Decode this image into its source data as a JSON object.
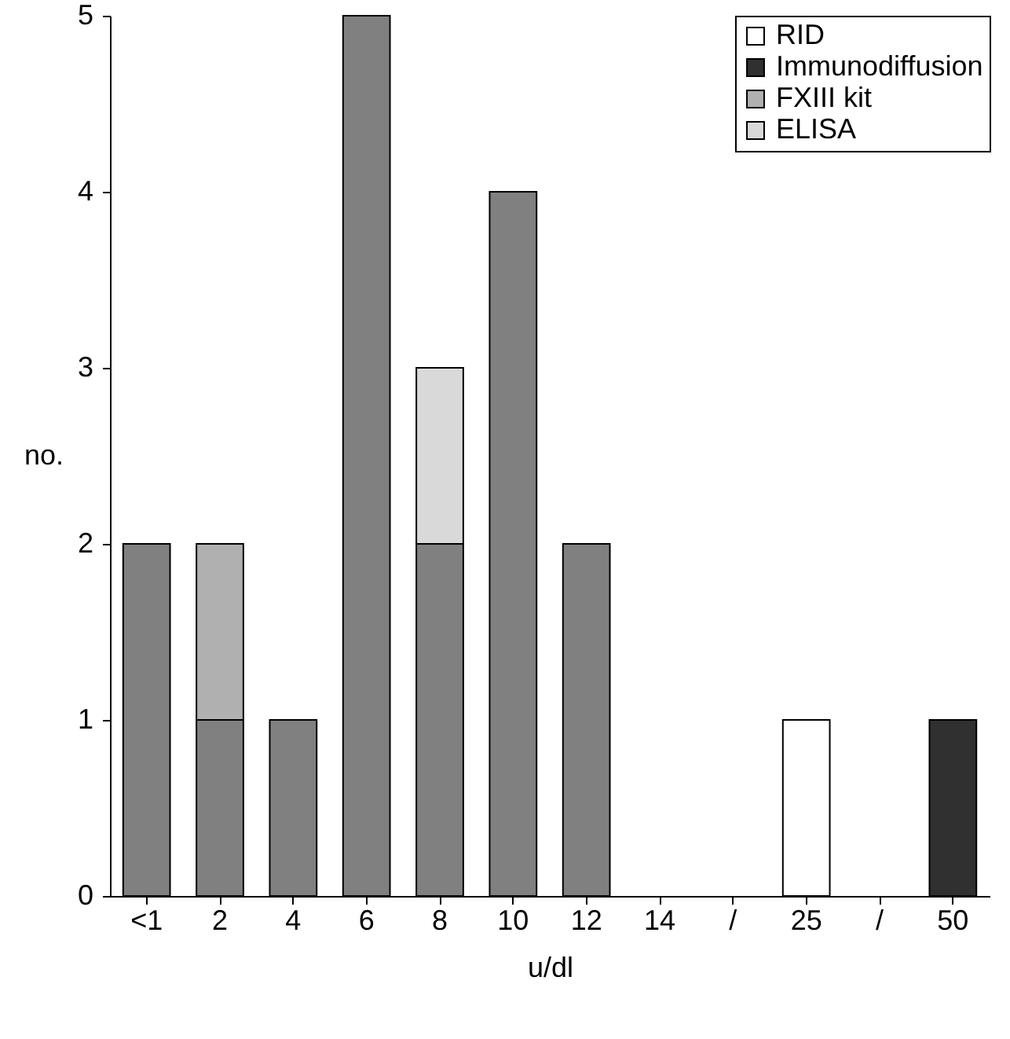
{
  "chart_data": {
    "type": "bar",
    "stacked": true,
    "xlabel": "u/dl",
    "ylabel": "no.",
    "categories": [
      "<1",
      "2",
      "4",
      "6",
      "8",
      "10",
      "12",
      "14",
      "/",
      "25",
      "/",
      "50"
    ],
    "series": [
      {
        "color": "#808080",
        "values": [
          2,
          1,
          1,
          5,
          2,
          4,
          2,
          null,
          null,
          null,
          null,
          null
        ]
      },
      {
        "name": "ELISA",
        "color": "#d9d9d9",
        "values": [
          null,
          null,
          null,
          null,
          1,
          null,
          null,
          null,
          null,
          null,
          null,
          null
        ]
      },
      {
        "name": "FXIII kit",
        "color": "#b0b0b0",
        "values": [
          null,
          1,
          null,
          null,
          null,
          null,
          null,
          null,
          null,
          null,
          null,
          null
        ]
      },
      {
        "name": "Immunodiffusion",
        "color": "#303030",
        "values": [
          null,
          null,
          null,
          null,
          null,
          null,
          null,
          null,
          null,
          null,
          null,
          1
        ]
      },
      {
        "name": "RID",
        "color": "#ffffff",
        "values": [
          null,
          null,
          null,
          null,
          null,
          null,
          null,
          null,
          null,
          1,
          null,
          null
        ]
      }
    ],
    "ylim": [
      0,
      5
    ],
    "yticks": [
      0,
      1,
      2,
      3,
      4,
      5
    ],
    "grid": false,
    "legend": "top right"
  }
}
